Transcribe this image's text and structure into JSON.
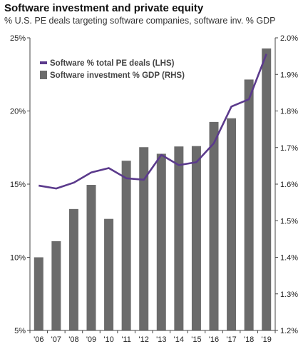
{
  "title": "Software investment and private equity",
  "subtitle": "% U.S. PE deals targeting software companies, software inv. % GDP",
  "colors": {
    "bar": "#6b6b6b",
    "line": "#5b3a8c",
    "axis": "#444444"
  },
  "chart_data": {
    "type": "bar+line",
    "title": "Software investment and private equity",
    "subtitle": "% U.S. PE deals targeting software companies, software inv. % GDP",
    "categories": [
      "'06",
      "'07",
      "'08",
      "'09",
      "'10",
      "'11",
      "'12",
      "'13",
      "'14",
      "'15",
      "'16",
      "'17",
      "'18",
      "'19"
    ],
    "bar_series": {
      "name": "Software investment % GDP (RHS)",
      "axis": "right",
      "values": [
        1.4,
        1.444,
        1.532,
        1.598,
        1.505,
        1.664,
        1.701,
        1.683,
        1.703,
        1.704,
        1.77,
        1.78,
        1.886,
        1.971
      ]
    },
    "line_series": {
      "name": "Software % total PE deals (LHS)",
      "axis": "left",
      "values": [
        14.9,
        14.7,
        15.1,
        15.8,
        16.1,
        15.4,
        15.3,
        17.0,
        16.3,
        16.5,
        17.8,
        20.3,
        20.8,
        23.9
      ]
    },
    "left_axis": {
      "min": 5,
      "max": 25,
      "ticks": [
        "5%",
        "10%",
        "15%",
        "20%",
        "25%"
      ]
    },
    "right_axis": {
      "min": 1.2,
      "max": 2.0,
      "ticks": [
        "1.2%",
        "1.3%",
        "1.4%",
        "1.5%",
        "1.6%",
        "1.7%",
        "1.8%",
        "1.9%",
        "2.0%"
      ]
    },
    "grid": false,
    "legend_position": "top-left"
  }
}
